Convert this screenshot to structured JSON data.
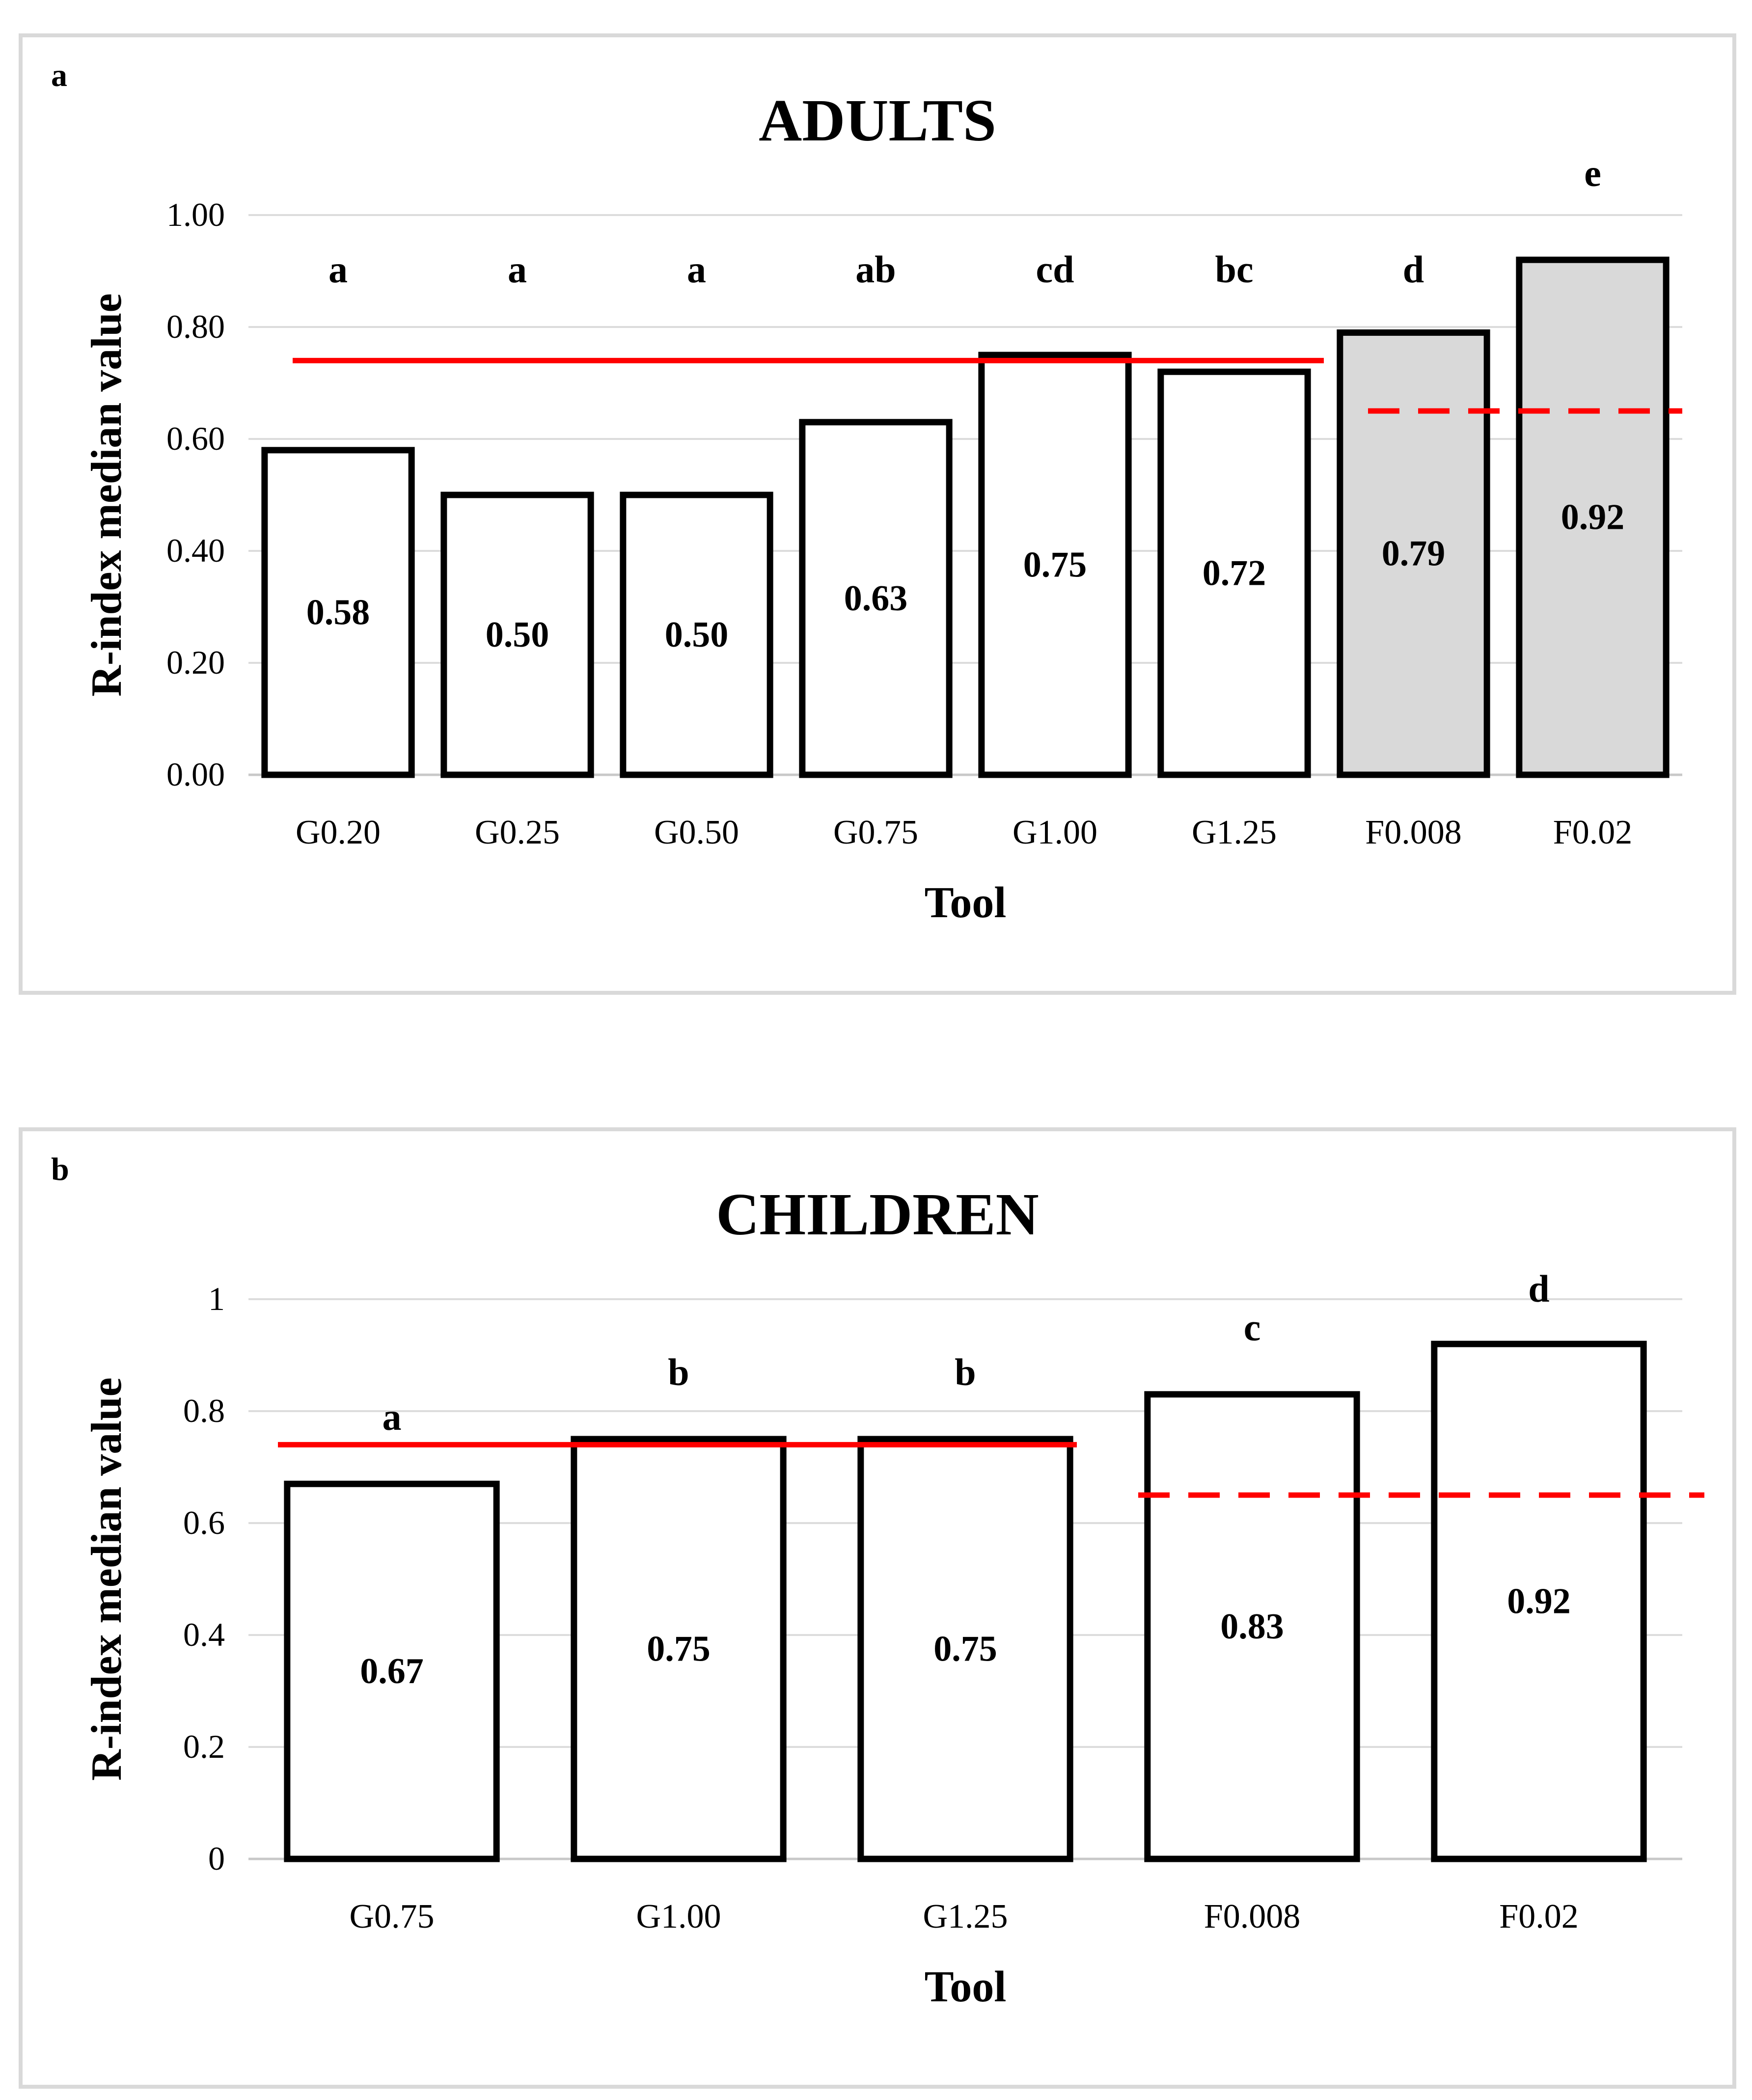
{
  "panels": [
    {
      "letter": "a",
      "chart_data": {
        "type": "bar",
        "title": "ADULTS",
        "xlabel": "Tool",
        "ylabel": "R-index median value",
        "ylim": [
          0,
          1
        ],
        "yticks": [
          "0.00",
          "0.20",
          "0.40",
          "0.60",
          "0.80",
          "1.00"
        ],
        "categories": [
          "G0.20",
          "G0.25",
          "G0.50",
          "G0.75",
          "G1.00",
          "G1.25",
          "F0.008",
          "F0.02"
        ],
        "values": [
          0.58,
          0.5,
          0.5,
          0.63,
          0.75,
          0.72,
          0.79,
          0.92
        ],
        "value_labels": [
          "0.58",
          "0.50",
          "0.50",
          "0.63",
          "0.75",
          "0.72",
          "0.79",
          "0.92"
        ],
        "significance_letters": [
          "a",
          "a",
          "a",
          "ab",
          "cd",
          "bc",
          "d",
          "e"
        ],
        "bar_fills": [
          "#ffffff",
          "#ffffff",
          "#ffffff",
          "#ffffff",
          "#ffffff",
          "#ffffff",
          "#d9d9d9",
          "#d9d9d9"
        ],
        "reference_lines": [
          {
            "style": "solid",
            "value": 0.74,
            "from_index": 0,
            "to_index": 5,
            "color": "#ff0000"
          },
          {
            "style": "dashed",
            "value": 0.65,
            "from_index": 6,
            "to_index": 7,
            "color": "#ff0000"
          }
        ]
      }
    },
    {
      "letter": "b",
      "chart_data": {
        "type": "bar",
        "title": "CHILDREN",
        "xlabel": "Tool",
        "ylabel": "R-index median value",
        "ylim": [
          0,
          1
        ],
        "yticks": [
          "0",
          "0.2",
          "0.4",
          "0.6",
          "0.8",
          "1"
        ],
        "categories": [
          "G0.75",
          "G1.00",
          "G1.25",
          "F0.008",
          "F0.02"
        ],
        "values": [
          0.67,
          0.75,
          0.75,
          0.83,
          0.92
        ],
        "value_labels": [
          "0.67",
          "0.75",
          "0.75",
          "0.83",
          "0.92"
        ],
        "significance_letters": [
          "a",
          "b",
          "b",
          "c",
          "d"
        ],
        "bar_fills": [
          "#ffffff",
          "#ffffff",
          "#ffffff",
          "#ffffff",
          "#ffffff"
        ],
        "reference_lines": [
          {
            "style": "solid",
            "value": 0.74,
            "from_index": 0,
            "to_index": 2,
            "color": "#ff0000"
          },
          {
            "style": "dashed",
            "value": 0.65,
            "from_index": 3,
            "to_index": 4,
            "color": "#ff0000"
          }
        ]
      }
    }
  ]
}
